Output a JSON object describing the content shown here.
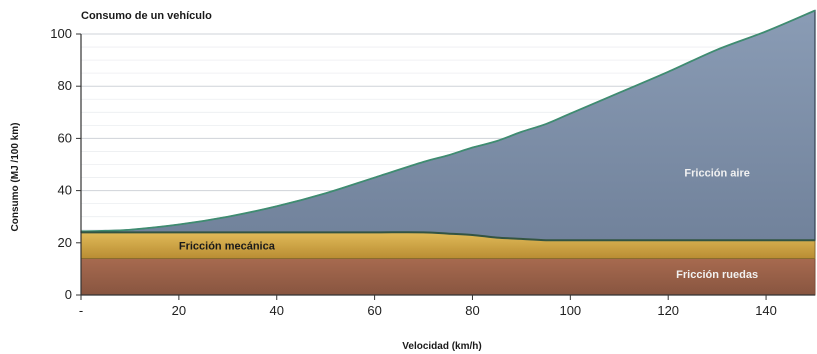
{
  "chart_data": {
    "type": "area",
    "title": "Consumo de un vehículo",
    "xlabel": "Velocidad (km/h)",
    "ylabel": "Consumo (MJ /100 km)",
    "xlim": [
      0,
      150
    ],
    "ylim": [
      0,
      100
    ],
    "x_ticks": [
      "-",
      "20",
      "40",
      "60",
      "80",
      "100",
      "120",
      "140"
    ],
    "y_ticks": [
      "0",
      "20",
      "40",
      "60",
      "80",
      "100"
    ],
    "grid": true,
    "x": [
      0,
      5,
      10,
      20,
      30,
      40,
      50,
      60,
      70,
      75,
      80,
      85,
      90,
      95,
      100,
      110,
      120,
      130,
      140,
      150
    ],
    "series": [
      {
        "name": "Fricción ruedas",
        "values": [
          14,
          14,
          14,
          14,
          14,
          14,
          14,
          14,
          14,
          14,
          14,
          14,
          14,
          14,
          14,
          14,
          14,
          14,
          14,
          14
        ],
        "color": "#9b5f46"
      },
      {
        "name": "Fricción mecánica",
        "values": [
          10,
          10,
          10,
          10,
          10,
          10,
          10,
          10,
          10,
          9.5,
          9,
          8,
          7.5,
          7,
          7,
          7,
          7,
          7,
          7,
          7
        ],
        "color": "#d4a13e"
      },
      {
        "name": "Fricción aire",
        "values": [
          0.4,
          0.6,
          1,
          3,
          6,
          10,
          15,
          21,
          27,
          30,
          33.5,
          37,
          41,
          44.5,
          48.5,
          56.5,
          64.5,
          73,
          80,
          88
        ],
        "color": "#7f90a9"
      }
    ],
    "annotations": [
      {
        "text": "Fricción aire",
        "x": 130,
        "y": 47
      },
      {
        "text": "Fricción mecánica",
        "x": 20,
        "y": 19
      },
      {
        "text": "Fricción ruedas",
        "x": 130,
        "y": 8
      }
    ]
  }
}
